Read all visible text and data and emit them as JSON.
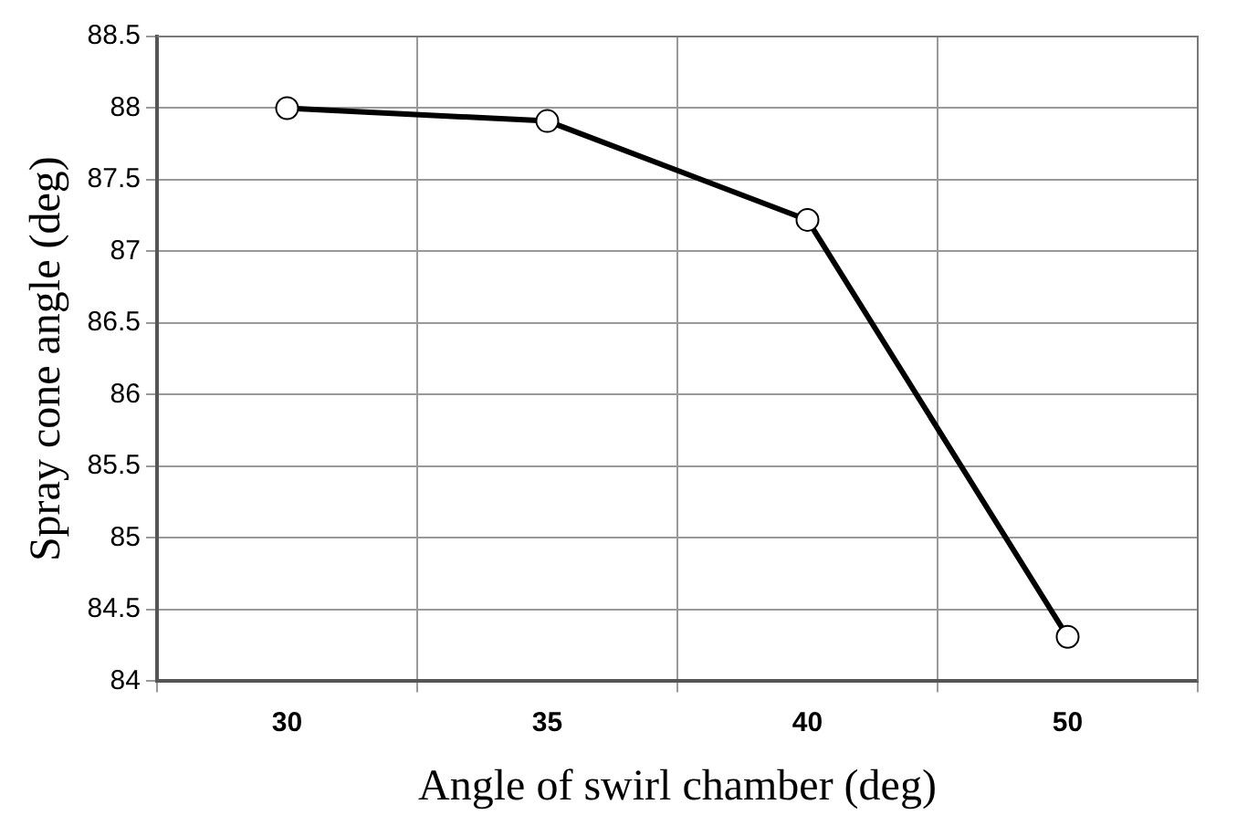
{
  "chart_data": {
    "type": "line",
    "xlabel": "Angle of swirl chamber (deg)",
    "ylabel": "Spray cone angle (deg)",
    "categories": [
      "30",
      "35",
      "40",
      "50"
    ],
    "series": [
      {
        "color": "#000000",
        "values": [
          88,
          87.91,
          87.22,
          84.31
        ]
      }
    ],
    "ylim": [
      84,
      88.5
    ],
    "yticks": [
      84,
      84.5,
      85,
      85.5,
      86,
      86.5,
      87,
      87.5,
      88,
      88.5
    ],
    "grid": true,
    "legend": false,
    "marker": "circle",
    "line_style": "solid"
  }
}
